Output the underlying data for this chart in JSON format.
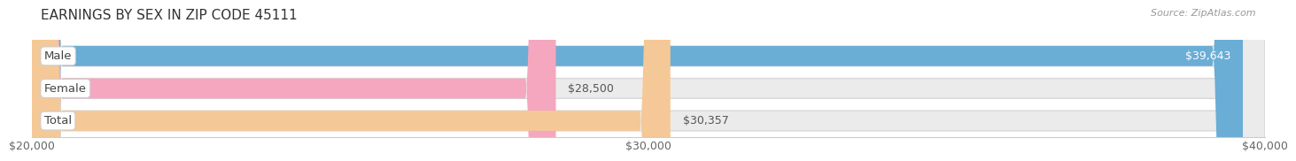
{
  "title": "EARNINGS BY SEX IN ZIP CODE 45111",
  "source": "Source: ZipAtlas.com",
  "categories": [
    "Male",
    "Female",
    "Total"
  ],
  "values": [
    39643,
    28500,
    30357
  ],
  "bar_colors": [
    "#6aadd5",
    "#f4a7be",
    "#f5c897"
  ],
  "value_labels": [
    "$39,643",
    "$28,500",
    "$30,357"
  ],
  "x_min": 20000,
  "x_max": 40000,
  "x_ticks": [
    20000,
    30000,
    40000
  ],
  "x_tick_labels": [
    "$20,000",
    "$30,000",
    "$40,000"
  ],
  "bar_height": 0.62,
  "background_color": "#ffffff",
  "track_color": "#ebebeb",
  "track_edge_color": "#d8d8d8",
  "title_fontsize": 11,
  "source_fontsize": 8,
  "tick_fontsize": 9,
  "label_fontsize": 9.5,
  "value_fontsize": 9
}
